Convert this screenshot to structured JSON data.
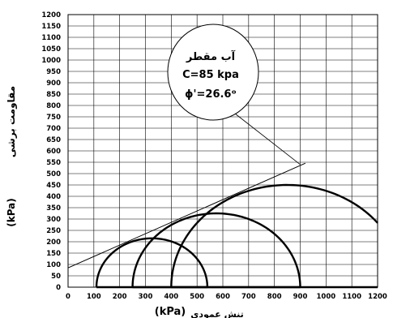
{
  "chart_data": {
    "type": "line",
    "xlabel": "تنش عمودی",
    "xlabel_unit": "(kPa)",
    "ylabel": "مقاومت برشی",
    "ylabel_unit": "(kPa)",
    "xlim": [
      0,
      1200
    ],
    "ylim": [
      0,
      1200
    ],
    "x_ticks": [
      0,
      100,
      200,
      300,
      400,
      500,
      600,
      700,
      800,
      900,
      1000,
      1100,
      1200
    ],
    "y_ticks": [
      0,
      50,
      100,
      150,
      200,
      250,
      300,
      350,
      400,
      450,
      500,
      550,
      600,
      650,
      700,
      750,
      800,
      850,
      900,
      950,
      1000,
      1050,
      1100,
      1150,
      1200
    ],
    "grid": true,
    "mohr_circles": [
      {
        "sigma3": 110,
        "sigma1": 540
      },
      {
        "sigma3": 250,
        "sigma1": 900
      },
      {
        "sigma3": 400,
        "sigma1": 1300
      }
    ],
    "failure_envelope": {
      "c": 85,
      "phi_deg": 26.6,
      "x_range": [
        0,
        920
      ]
    },
    "annotation": {
      "lines": [
        "آب مقطر",
        "C=85 kpa",
        "ϕ'=26.6ᵒ"
      ],
      "anchor": [
        900,
        540
      ]
    }
  }
}
